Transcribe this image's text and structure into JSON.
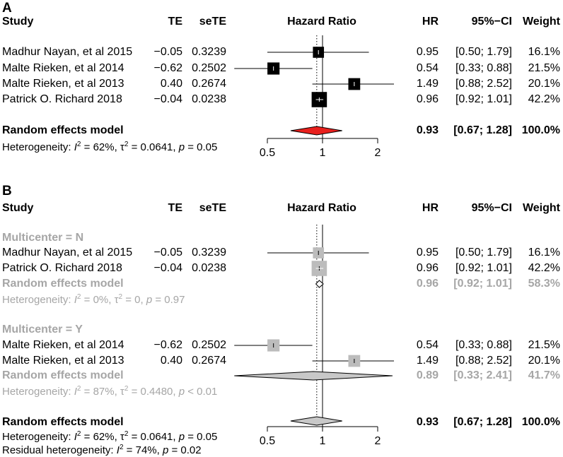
{
  "colors": {
    "text": "#000000",
    "subgroup_gray": "#a6a6a6",
    "pooled_fill": "#e8201d",
    "subgroup_diamond_fill": "#c8c8c8",
    "square_black": "#000000",
    "square_gray": "#bcbcbc"
  },
  "headers": {
    "study": "Study",
    "te": "TE",
    "sete": "seTE",
    "hr_axis": "Hazard Ratio",
    "hr": "HR",
    "ci": "95%−CI",
    "weight": "Weight"
  },
  "panelA": {
    "letter": "A",
    "studies": [
      {
        "study": "Madhur Nayan, et al 2015",
        "te": "−0.05",
        "sete": "0.3239",
        "hr": "0.95",
        "ci": "[0.50; 1.79]",
        "weight": "16.1%"
      },
      {
        "study": "Malte Rieken, et al 2014",
        "te": "−0.62",
        "sete": "0.2502",
        "hr": "0.54",
        "ci": "[0.33; 0.88]",
        "weight": "21.5%"
      },
      {
        "study": "Malte Rieken, et al 2013",
        "te": "0.40",
        "sete": "0.2674",
        "hr": "1.49",
        "ci": "[0.88; 2.52]",
        "weight": "20.1%"
      },
      {
        "study": "Patrick O. Richard 2018",
        "te": "−0.04",
        "sete": "0.0238",
        "hr": "0.96",
        "ci": "[0.92; 1.01]",
        "weight": "42.2%"
      }
    ],
    "pooled": {
      "label": "Random effects model",
      "hr": "0.93",
      "ci": "[0.67; 1.28]",
      "weight": "100.0%"
    },
    "heterogeneity": {
      "prefix": "Heterogeneity: ",
      "i2": "I",
      "i2_sup": "2",
      "i2_val": " = 62%,  ",
      "tau_sup": "2",
      "tau_val": " = 0.0641, ",
      "p": "p",
      "p_val": " = 0.05"
    }
  },
  "panelB": {
    "letter": "B",
    "groupN": {
      "label": "Multicenter = N",
      "studies": [
        {
          "study": "Madhur Nayan, et al 2015",
          "te": "−0.05",
          "sete": "0.3239",
          "hr": "0.95",
          "ci": "[0.50; 1.79]",
          "weight": "16.1%"
        },
        {
          "study": "Patrick O. Richard 2018",
          "te": "−0.04",
          "sete": "0.0238",
          "hr": "0.96",
          "ci": "[0.92; 1.01]",
          "weight": "42.2%"
        }
      ],
      "pooled": {
        "label": "Random effects model",
        "hr": "0.96",
        "ci": "[0.92; 1.01]",
        "weight": "58.3%"
      },
      "heterogeneity": {
        "prefix": "Heterogeneity: ",
        "i2": "I",
        "i2_sup": "2",
        "i2_val": " = 0%,  ",
        "tau_sup": "2",
        "tau_val": " = 0, ",
        "p": "p",
        "p_val": " = 0.97"
      }
    },
    "groupY": {
      "label": "Multicenter = Y",
      "studies": [
        {
          "study": "Malte Rieken, et al 2014",
          "te": "−0.62",
          "sete": "0.2502",
          "hr": "0.54",
          "ci": "[0.33; 0.88]",
          "weight": "21.5%"
        },
        {
          "study": "Malte Rieken, et al 2013",
          "te": "0.40",
          "sete": "0.2674",
          "hr": "1.49",
          "ci": "[0.88; 2.52]",
          "weight": "20.1%"
        }
      ],
      "pooled": {
        "label": "Random effects model",
        "hr": "0.89",
        "ci": "[0.33; 2.41]",
        "weight": "41.7%"
      },
      "heterogeneity": {
        "prefix": "Heterogeneity: ",
        "i2": "I",
        "i2_sup": "2",
        "i2_val": " = 87%,  ",
        "tau_sup": "2",
        "tau_val": " = 0.4480, ",
        "p": "p",
        "p_val": " < 0.01"
      }
    },
    "pooled": {
      "label": "Random effects model",
      "hr": "0.93",
      "ci": "[0.67; 1.28]",
      "weight": "100.0%"
    },
    "heterogeneity": {
      "prefix": "Heterogeneity: ",
      "i2": "I",
      "i2_sup": "2",
      "i2_val": " = 62%,  ",
      "tau_sup": "2",
      "tau_val": " = 0.0641, ",
      "p": "p",
      "p_val": " = 0.05"
    },
    "residual": {
      "prefix": "Residual heterogeneity: ",
      "i2": "I",
      "i2_sup": "2",
      "i2_val": " = 74%, ",
      "p": "p",
      "p_val": " = 0.02"
    }
  },
  "chart_data": [
    {
      "type": "forest",
      "title": "A",
      "xlabel": "Hazard Ratio",
      "scale": "log",
      "xlim": [
        0.5,
        2
      ],
      "xticks": [
        0.5,
        1,
        2
      ],
      "xtick_labels": [
        "0.5",
        "1",
        "2"
      ],
      "reference_line": 1,
      "pooled_estimate_line": 0.93,
      "studies": [
        {
          "name": "Madhur Nayan, et al 2015",
          "hr": 0.95,
          "lo": 0.5,
          "hi": 1.79,
          "weight": 16.1
        },
        {
          "name": "Malte Rieken, et al 2014",
          "hr": 0.54,
          "lo": 0.33,
          "hi": 0.88,
          "weight": 21.5
        },
        {
          "name": "Malte Rieken, et al 2013",
          "hr": 1.49,
          "lo": 0.88,
          "hi": 2.52,
          "weight": 20.1
        },
        {
          "name": "Patrick O. Richard 2018",
          "hr": 0.96,
          "lo": 0.92,
          "hi": 1.01,
          "weight": 42.2
        }
      ],
      "pooled": {
        "name": "Random effects model",
        "hr": 0.93,
        "lo": 0.67,
        "hi": 1.28,
        "weight": 100.0
      }
    },
    {
      "type": "forest",
      "title": "B",
      "xlabel": "Hazard Ratio",
      "scale": "log",
      "xlim": [
        0.5,
        2
      ],
      "xticks": [
        0.5,
        1,
        2
      ],
      "xtick_labels": [
        "0.5",
        "1",
        "2"
      ],
      "reference_line": 1,
      "pooled_estimate_line": 0.93,
      "subgroups": [
        {
          "name": "Multicenter = N",
          "studies": [
            {
              "name": "Madhur Nayan, et al 2015",
              "hr": 0.95,
              "lo": 0.5,
              "hi": 1.79,
              "weight": 16.1
            },
            {
              "name": "Patrick O. Richard 2018",
              "hr": 0.96,
              "lo": 0.92,
              "hi": 1.01,
              "weight": 42.2
            }
          ],
          "pooled": {
            "hr": 0.96,
            "lo": 0.92,
            "hi": 1.01,
            "weight": 58.3
          }
        },
        {
          "name": "Multicenter = Y",
          "studies": [
            {
              "name": "Malte Rieken, et al 2014",
              "hr": 0.54,
              "lo": 0.33,
              "hi": 0.88,
              "weight": 21.5
            },
            {
              "name": "Malte Rieken, et al 2013",
              "hr": 1.49,
              "lo": 0.88,
              "hi": 2.52,
              "weight": 20.1
            }
          ],
          "pooled": {
            "hr": 0.89,
            "lo": 0.33,
            "hi": 2.41,
            "weight": 41.7
          }
        }
      ],
      "pooled": {
        "name": "Random effects model",
        "hr": 0.93,
        "lo": 0.67,
        "hi": 1.28,
        "weight": 100.0
      }
    }
  ]
}
